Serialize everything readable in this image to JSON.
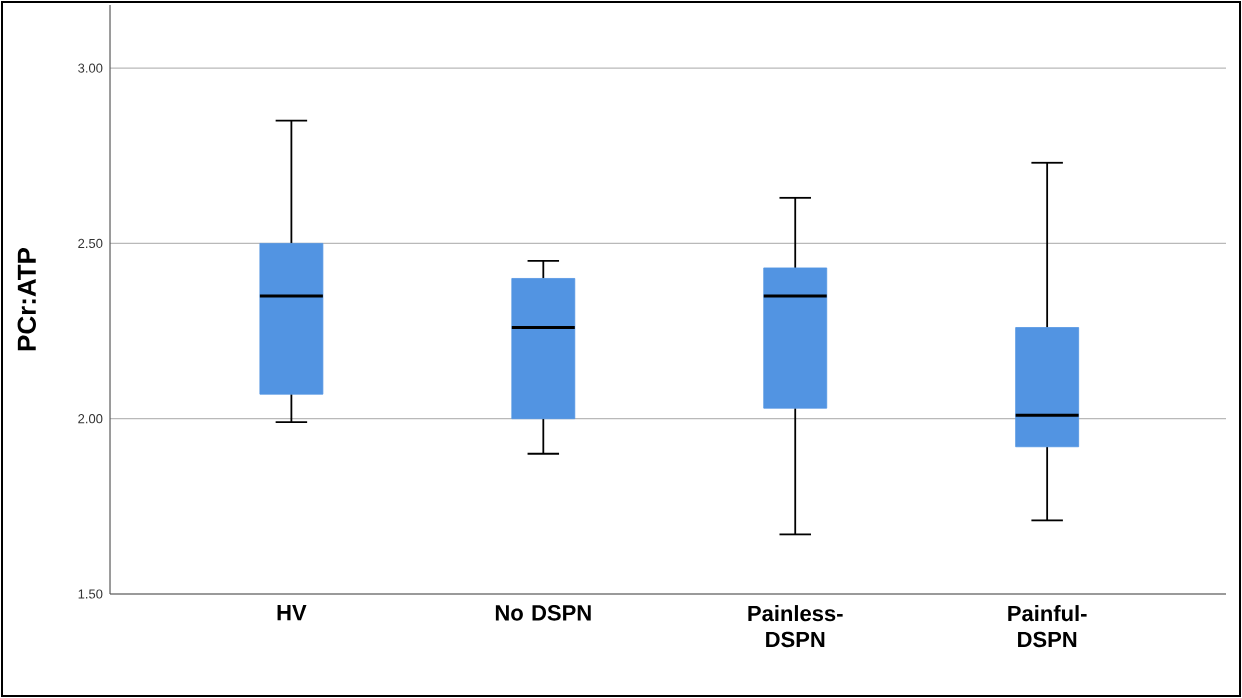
{
  "chart_data": {
    "type": "box",
    "ylabel": "PCr:ATP",
    "color": "#5294e2",
    "grid": "y",
    "categories": [
      "HV",
      "No DSPN",
      "Painless-DSPN",
      "Painful-DSPN"
    ],
    "boxes": [
      {
        "low": 1.99,
        "q1": 2.07,
        "median": 2.35,
        "q3": 2.5,
        "high": 2.85
      },
      {
        "low": 1.9,
        "q1": 2.0,
        "median": 2.26,
        "q3": 2.4,
        "high": 2.45
      },
      {
        "low": 1.67,
        "q1": 2.03,
        "median": 2.35,
        "q3": 2.43,
        "high": 2.63
      },
      {
        "low": 1.71,
        "q1": 1.92,
        "median": 2.01,
        "q3": 2.26,
        "high": 2.73
      }
    ],
    "ylim": [
      1.5,
      3.18
    ],
    "yticks": [
      {
        "value": 1.5,
        "label": "1.50"
      },
      {
        "value": 2.0,
        "label": "2.00"
      },
      {
        "value": 2.5,
        "label": "2.50"
      },
      {
        "value": 3.0,
        "label": "3.00"
      }
    ]
  }
}
